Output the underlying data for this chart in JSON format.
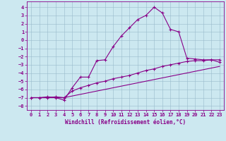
{
  "xlabel": "Windchill (Refroidissement éolien,°C)",
  "bg_color": "#cce8f0",
  "line_color": "#880088",
  "grid_color": "#99bbcc",
  "xlim": [
    -0.5,
    23.5
  ],
  "ylim": [
    -8.5,
    4.7
  ],
  "xticks": [
    0,
    1,
    2,
    3,
    4,
    5,
    6,
    7,
    8,
    9,
    10,
    11,
    12,
    13,
    14,
    15,
    16,
    17,
    18,
    19,
    20,
    21,
    22,
    23
  ],
  "yticks": [
    -8,
    -7,
    -6,
    -5,
    -4,
    -3,
    -2,
    -1,
    0,
    1,
    2,
    3,
    4
  ],
  "series1_x": [
    0,
    1,
    2,
    3,
    4,
    5,
    6,
    7,
    8,
    9,
    10,
    11,
    12,
    13,
    14,
    15,
    16,
    17,
    18,
    19,
    20,
    21,
    22,
    23
  ],
  "series1_y": [
    -7.0,
    -7.0,
    -6.9,
    -7.0,
    -7.3,
    -5.8,
    -4.5,
    -4.5,
    -2.5,
    -2.4,
    -0.8,
    0.5,
    1.5,
    2.5,
    3.0,
    4.0,
    3.3,
    1.3,
    1.0,
    -2.2,
    -2.3,
    -2.4,
    -2.4,
    -2.7
  ],
  "series2_x": [
    0,
    1,
    2,
    3,
    4,
    5,
    6,
    7,
    8,
    9,
    10,
    11,
    12,
    13,
    14,
    15,
    16,
    17,
    18,
    19,
    20,
    21,
    22,
    23
  ],
  "series2_y": [
    -7.0,
    -7.0,
    -7.0,
    -6.9,
    -7.0,
    -6.2,
    -5.8,
    -5.5,
    -5.2,
    -5.0,
    -4.7,
    -4.5,
    -4.3,
    -4.0,
    -3.7,
    -3.5,
    -3.2,
    -3.0,
    -2.8,
    -2.6,
    -2.5,
    -2.5,
    -2.4,
    -2.4
  ],
  "series3_x": [
    0,
    1,
    2,
    3,
    4,
    5,
    6,
    7,
    8,
    9,
    10,
    11,
    12,
    13,
    14,
    15,
    16,
    17,
    18,
    19,
    20,
    21,
    22,
    23
  ],
  "series3_y": [
    -7.0,
    -7.0,
    -7.0,
    -7.0,
    -7.0,
    -6.8,
    -6.6,
    -6.4,
    -6.2,
    -6.0,
    -5.8,
    -5.6,
    -5.4,
    -5.2,
    -5.0,
    -4.8,
    -4.6,
    -4.4,
    -4.2,
    -4.0,
    -3.8,
    -3.6,
    -3.4,
    -3.2
  ],
  "xlabel_fontsize": 5.5,
  "tick_fontsize": 5.0,
  "linewidth": 0.8,
  "markersize": 2.5
}
